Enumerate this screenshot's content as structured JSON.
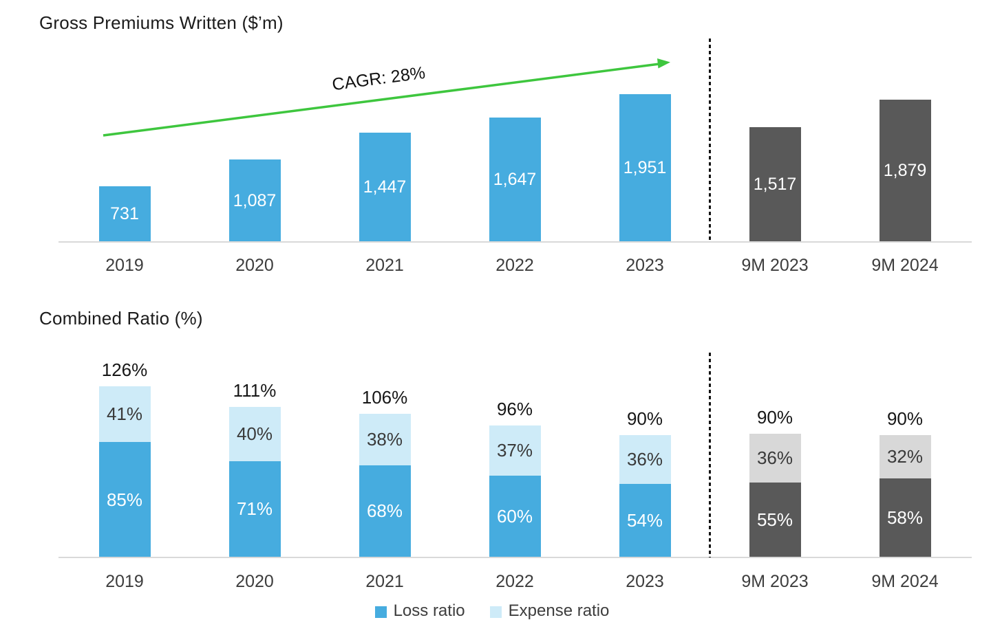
{
  "colors": {
    "primary_blue": "#46ACDF",
    "light_blue": "#CEEBF8",
    "dark_gray": "#595959",
    "light_gray": "#D8D8D8",
    "arrow_green": "#3EC63E",
    "axis_line": "#D9D9D9",
    "label_dark": "#161616",
    "label_medium": "#3D3D3D",
    "label_white": "#FFFFFF"
  },
  "chart_data": [
    {
      "type": "bar",
      "title": "Gross Premiums Written ($’m)",
      "annotation": "CAGR: 28%",
      "categories": [
        "2019",
        "2020",
        "2021",
        "2022",
        "2023",
        "9M 2023",
        "9M 2024"
      ],
      "values": [
        731,
        1087,
        1447,
        1647,
        1951,
        1517,
        1879
      ],
      "value_labels": [
        "731",
        "1,087",
        "1,447",
        "1,647",
        "1,951",
        "1,517",
        "1,879"
      ],
      "bar_colors": [
        "primary_blue",
        "primary_blue",
        "primary_blue",
        "primary_blue",
        "primary_blue",
        "dark_gray",
        "dark_gray"
      ],
      "ylim": [
        0,
        1951
      ],
      "grid": false,
      "separator_after_index": 4,
      "xlabel": "",
      "ylabel": ""
    },
    {
      "type": "stacked-bar",
      "title": "Combined Ratio (%)",
      "categories": [
        "2019",
        "2020",
        "2021",
        "2022",
        "2023",
        "9M 2023",
        "9M 2024"
      ],
      "series": [
        {
          "name": "Loss ratio",
          "values": [
            85,
            71,
            68,
            60,
            54,
            55,
            58
          ],
          "value_labels": [
            "85%",
            "71%",
            "68%",
            "60%",
            "54%",
            "55%",
            "58%"
          ],
          "segment_colors": [
            "primary_blue",
            "primary_blue",
            "primary_blue",
            "primary_blue",
            "primary_blue",
            "dark_gray",
            "dark_gray"
          ]
        },
        {
          "name": "Expense ratio",
          "values": [
            41,
            40,
            38,
            37,
            36,
            36,
            32
          ],
          "value_labels": [
            "41%",
            "40%",
            "38%",
            "37%",
            "36%",
            "36%",
            "32%"
          ],
          "segment_colors": [
            "light_blue",
            "light_blue",
            "light_blue",
            "light_blue",
            "light_blue",
            "light_gray",
            "light_gray"
          ]
        }
      ],
      "totals": [
        126,
        111,
        106,
        96,
        90,
        90,
        90
      ],
      "total_labels": [
        "126%",
        "111%",
        "106%",
        "96%",
        "90%",
        "90%",
        "90%"
      ],
      "ylim": [
        0,
        126
      ],
      "grid": false,
      "separator_after_index": 4,
      "legend_position": "bottom",
      "xlabel": "",
      "ylabel": ""
    }
  ]
}
